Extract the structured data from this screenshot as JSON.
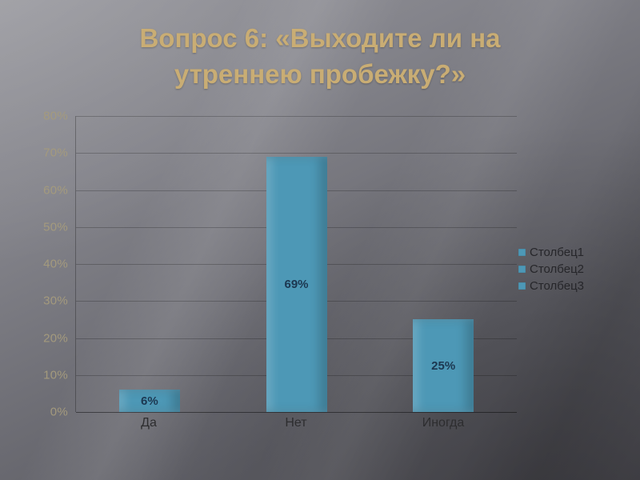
{
  "slide": {
    "title_lines": [
      "Вопрос 6: «Выходите ли на",
      "утреннею пробежку?»"
    ]
  },
  "chart_data": {
    "type": "bar",
    "title": "Вопрос 6: «Выходите ли на утреннею пробежку?»",
    "categories": [
      "Да",
      "Нет",
      "Иногда"
    ],
    "values": [
      6,
      69,
      25
    ],
    "value_labels": [
      "6%",
      "69%",
      "25%"
    ],
    "y_ticks": [
      "80%",
      "70%",
      "60%",
      "50%",
      "40%",
      "30%",
      "20%",
      "10%",
      "0%"
    ],
    "ylim": [
      0,
      80
    ],
    "xlabel": "",
    "ylabel": "",
    "grid": true,
    "legend": {
      "position": "right",
      "entries": [
        "Столбец1",
        "Столбец2",
        "Столбец3"
      ]
    },
    "colors": {
      "bar": "#4d98b6",
      "value_label": "#1c3750",
      "axis_text": "#a49a7d",
      "category_text": "#2d2d2f",
      "title_text": "#c9ad74"
    }
  }
}
